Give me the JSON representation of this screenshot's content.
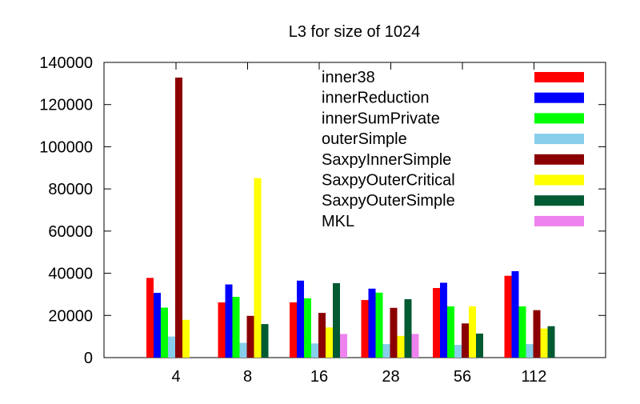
{
  "chart_data": {
    "type": "bar",
    "title": "L3 for size of 1024",
    "xlabel": "",
    "ylabel": "",
    "ylim": [
      0,
      140000
    ],
    "yticks": [
      "0",
      "20000",
      "40000",
      "60000",
      "80000",
      "100000",
      "120000",
      "140000"
    ],
    "categories": [
      "4",
      "8",
      "16",
      "28",
      "56",
      "112"
    ],
    "grid": false,
    "legend_position": "top-right",
    "series": [
      {
        "name": "inner38",
        "color": "#ff0000",
        "values": [
          37800,
          26200,
          26200,
          27300,
          33000,
          38800
        ]
      },
      {
        "name": "innerReduction",
        "color": "#0000ff",
        "values": [
          30700,
          34700,
          36500,
          32700,
          35500,
          41000
        ]
      },
      {
        "name": "innerSumPrivate",
        "color": "#00ff00",
        "values": [
          23700,
          28800,
          28100,
          30800,
          24300,
          24300
        ]
      },
      {
        "name": "outerSimple",
        "color": "#87ceeb",
        "values": [
          10000,
          7000,
          6700,
          6400,
          6000,
          6400
        ]
      },
      {
        "name": "SaxpyInnerSimple",
        "color": "#8b0000",
        "values": [
          132800,
          19800,
          21200,
          23600,
          16200,
          22500
        ]
      },
      {
        "name": "SaxpyOuterCritical",
        "color": "#ffff00",
        "values": [
          17900,
          85100,
          14300,
          10300,
          24300,
          13800
        ]
      },
      {
        "name": "SaxpyOuterSimple",
        "color": "#005a32",
        "values": [
          null,
          15900,
          35300,
          27700,
          11400,
          14900
        ]
      },
      {
        "name": "MKL",
        "color": "#ee82ee",
        "values": [
          null,
          null,
          11200,
          11200,
          null,
          null
        ]
      }
    ]
  }
}
